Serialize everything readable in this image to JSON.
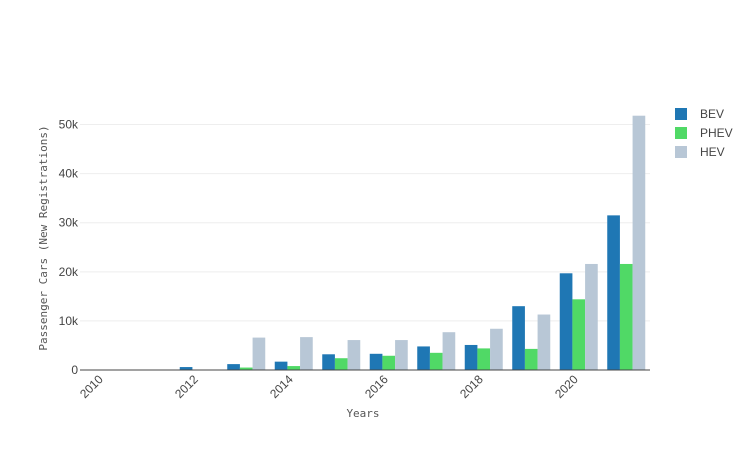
{
  "chart_data": {
    "type": "bar",
    "categories": [
      2010,
      2011,
      2012,
      2013,
      2014,
      2015,
      2016,
      2017,
      2018,
      2019,
      2020,
      2021
    ],
    "x_tick_labels": [
      "2010",
      "2012",
      "2014",
      "2016",
      "2018",
      "2020"
    ],
    "x_tick_values": [
      2010,
      2012,
      2014,
      2016,
      2018,
      2020
    ],
    "xlabel": "Years",
    "ylabel": "Passenger Cars (New Registrations)",
    "ylim": [
      0,
      55000
    ],
    "y_tick_values": [
      0,
      10000,
      20000,
      30000,
      40000,
      50000
    ],
    "y_tick_labels": [
      "0",
      "10k",
      "20k",
      "30k",
      "40k",
      "50k"
    ],
    "grid": true,
    "legend_position": "top-right",
    "series": [
      {
        "name": "BEV",
        "color": "#1f77b4",
        "values": [
          0,
          0,
          600,
          1200,
          1700,
          3200,
          3300,
          4800,
          5100,
          13000,
          19700,
          31500
        ]
      },
      {
        "name": "PHEV",
        "color": "#50d966",
        "values": [
          0,
          0,
          100,
          500,
          800,
          2400,
          2900,
          3500,
          4400,
          4300,
          14400,
          21600
        ]
      },
      {
        "name": "HEV",
        "color": "#b8c7d6",
        "values": [
          0,
          0,
          0,
          6600,
          6700,
          6100,
          6100,
          7700,
          8400,
          11300,
          21600,
          51800
        ]
      }
    ]
  }
}
